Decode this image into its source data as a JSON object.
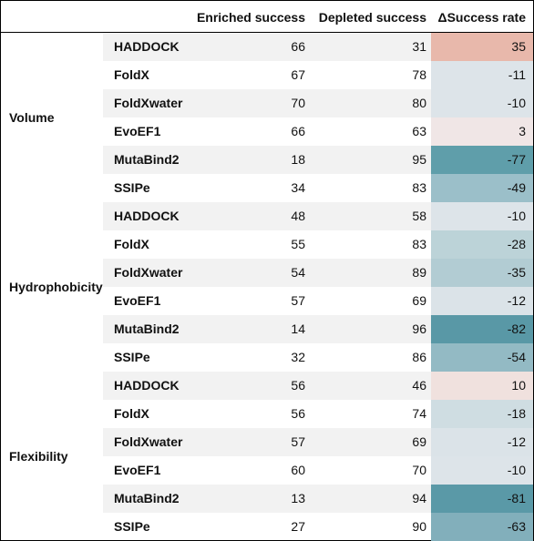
{
  "headers": {
    "enriched": "Enriched success",
    "depleted": "Depleted success",
    "delta": "ΔSuccess rate"
  },
  "groups": [
    {
      "label": "Volume",
      "rows": [
        {
          "method": "HADDOCK",
          "enriched": "66",
          "depleted": "31",
          "delta": "35",
          "color": "#e8b8ab"
        },
        {
          "method": "FoldX",
          "enriched": "67",
          "depleted": "78",
          "delta": "-11",
          "color": "#dde4e9"
        },
        {
          "method": "FoldXwater",
          "enriched": "70",
          "depleted": "80",
          "delta": "-10",
          "color": "#dde4e9"
        },
        {
          "method": "EvoEF1",
          "enriched": "66",
          "depleted": "63",
          "delta": "3",
          "color": "#f0e6e6"
        },
        {
          "method": "MutaBind2",
          "enriched": "18",
          "depleted": "95",
          "delta": "-77",
          "color": "#5f9eaa"
        },
        {
          "method": "SSIPe",
          "enriched": "34",
          "depleted": "83",
          "delta": "-49",
          "color": "#9bbfc9"
        }
      ]
    },
    {
      "label": "Hydrophobicity",
      "rows": [
        {
          "method": "HADDOCK",
          "enriched": "48",
          "depleted": "58",
          "delta": "-10",
          "color": "#dde4e9"
        },
        {
          "method": "FoldX",
          "enriched": "55",
          "depleted": "83",
          "delta": "-28",
          "color": "#bcd3d8"
        },
        {
          "method": "FoldXwater",
          "enriched": "54",
          "depleted": "89",
          "delta": "-35",
          "color": "#b2ccd3"
        },
        {
          "method": "EvoEF1",
          "enriched": "57",
          "depleted": "69",
          "delta": "-12",
          "color": "#dbe3e8"
        },
        {
          "method": "MutaBind2",
          "enriched": "14",
          "depleted": "96",
          "delta": "-82",
          "color": "#5998a6"
        },
        {
          "method": "SSIPe",
          "enriched": "32",
          "depleted": "86",
          "delta": "-54",
          "color": "#93bac4"
        }
      ]
    },
    {
      "label": "Flexibility",
      "rows": [
        {
          "method": "HADDOCK",
          "enriched": "56",
          "depleted": "46",
          "delta": "10",
          "color": "#f0e1de"
        },
        {
          "method": "FoldX",
          "enriched": "56",
          "depleted": "74",
          "delta": "-18",
          "color": "#cfdde2"
        },
        {
          "method": "FoldXwater",
          "enriched": "57",
          "depleted": "69",
          "delta": "-12",
          "color": "#dbe3e8"
        },
        {
          "method": "EvoEF1",
          "enriched": "60",
          "depleted": "70",
          "delta": "-10",
          "color": "#dde4e9"
        },
        {
          "method": "MutaBind2",
          "enriched": "13",
          "depleted": "94",
          "delta": "-81",
          "color": "#5a99a7"
        },
        {
          "method": "SSIPe",
          "enriched": "27",
          "depleted": "90",
          "delta": "-63",
          "color": "#82afbb"
        }
      ]
    }
  ]
}
